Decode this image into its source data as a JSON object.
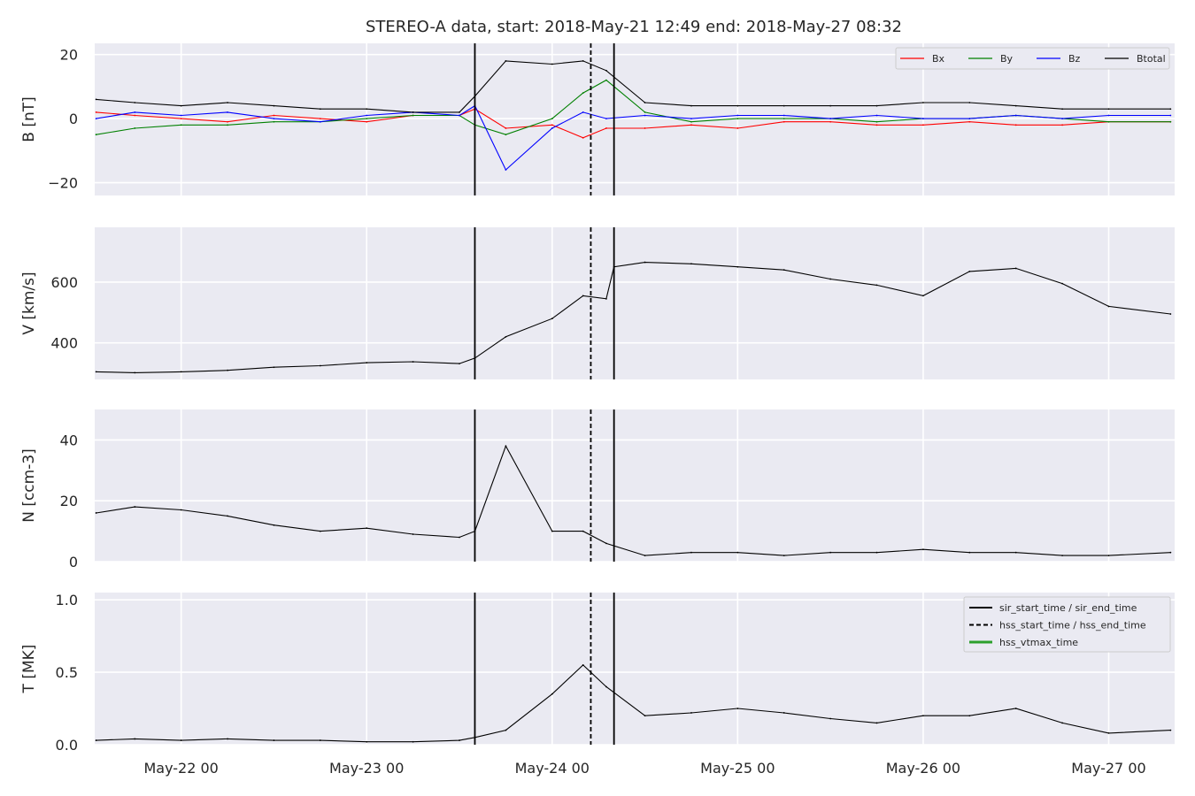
{
  "figure": {
    "title": "STEREO-A data, start: 2018-May-21 12:49  end: 2018-May-27 08:32"
  },
  "chart_data": [
    {
      "type": "line",
      "panel": "B",
      "ylabel": "B [nT]",
      "ylim": [
        -24,
        23.5
      ],
      "yticks": [
        -20,
        0,
        20
      ],
      "ytick_labels": [
        "−20",
        "0",
        "20"
      ],
      "grid": true,
      "legend": {
        "placement": "top-right",
        "style": "horizontal"
      },
      "series": [
        {
          "name": "Bx",
          "color": "#ff0000",
          "x": [
            "2018-05-21 13:00",
            "2018-05-21 18:00",
            "2018-05-22 00:00",
            "2018-05-22 06:00",
            "2018-05-22 12:00",
            "2018-05-22 18:00",
            "2018-05-23 00:00",
            "2018-05-23 06:00",
            "2018-05-23 12:00",
            "2018-05-23 14:00",
            "2018-05-23 18:00",
            "2018-05-24 00:00",
            "2018-05-24 04:00",
            "2018-05-24 07:00",
            "2018-05-24 12:00",
            "2018-05-24 18:00",
            "2018-05-25 00:00",
            "2018-05-25 06:00",
            "2018-05-25 12:00",
            "2018-05-25 18:00",
            "2018-05-26 00:00",
            "2018-05-26 06:00",
            "2018-05-26 12:00",
            "2018-05-26 18:00",
            "2018-05-27 00:00",
            "2018-05-27 08:00"
          ],
          "y": [
            2,
            1,
            0,
            -1,
            1,
            0,
            -1,
            1,
            1,
            3,
            -3,
            -2,
            -6,
            -3,
            -3,
            -2,
            -3,
            -1,
            -1,
            -2,
            -2,
            -1,
            -2,
            -2,
            -1,
            -1
          ]
        },
        {
          "name": "By",
          "color": "#008000",
          "x": [
            "2018-05-21 13:00",
            "2018-05-21 18:00",
            "2018-05-22 00:00",
            "2018-05-22 06:00",
            "2018-05-22 12:00",
            "2018-05-22 18:00",
            "2018-05-23 00:00",
            "2018-05-23 06:00",
            "2018-05-23 12:00",
            "2018-05-23 14:00",
            "2018-05-23 18:00",
            "2018-05-24 00:00",
            "2018-05-24 04:00",
            "2018-05-24 07:00",
            "2018-05-24 12:00",
            "2018-05-24 18:00",
            "2018-05-25 00:00",
            "2018-05-25 06:00",
            "2018-05-25 12:00",
            "2018-05-25 18:00",
            "2018-05-26 00:00",
            "2018-05-26 06:00",
            "2018-05-26 12:00",
            "2018-05-26 18:00",
            "2018-05-27 00:00",
            "2018-05-27 08:00"
          ],
          "y": [
            -5,
            -3,
            -2,
            -2,
            -1,
            -1,
            0,
            1,
            1,
            -2,
            -5,
            0,
            8,
            12,
            2,
            -1,
            0,
            0,
            0,
            -1,
            0,
            0,
            1,
            0,
            -1,
            -1
          ]
        },
        {
          "name": "Bz",
          "color": "#0000ff",
          "x": [
            "2018-05-21 13:00",
            "2018-05-21 18:00",
            "2018-05-22 00:00",
            "2018-05-22 06:00",
            "2018-05-22 12:00",
            "2018-05-22 18:00",
            "2018-05-23 00:00",
            "2018-05-23 06:00",
            "2018-05-23 12:00",
            "2018-05-23 14:00",
            "2018-05-23 18:00",
            "2018-05-24 00:00",
            "2018-05-24 04:00",
            "2018-05-24 07:00",
            "2018-05-24 12:00",
            "2018-05-24 18:00",
            "2018-05-25 00:00",
            "2018-05-25 06:00",
            "2018-05-25 12:00",
            "2018-05-25 18:00",
            "2018-05-26 00:00",
            "2018-05-26 06:00",
            "2018-05-26 12:00",
            "2018-05-26 18:00",
            "2018-05-27 00:00",
            "2018-05-27 08:00"
          ],
          "y": [
            0,
            2,
            1,
            2,
            0,
            -1,
            1,
            2,
            1,
            4,
            -16,
            -3,
            2,
            0,
            1,
            0,
            1,
            1,
            0,
            1,
            0,
            0,
            1,
            0,
            1,
            1
          ]
        },
        {
          "name": "Btotal",
          "color": "#000000",
          "x": [
            "2018-05-21 13:00",
            "2018-05-21 18:00",
            "2018-05-22 00:00",
            "2018-05-22 06:00",
            "2018-05-22 12:00",
            "2018-05-22 18:00",
            "2018-05-23 00:00",
            "2018-05-23 06:00",
            "2018-05-23 12:00",
            "2018-05-23 14:00",
            "2018-05-23 18:00",
            "2018-05-24 00:00",
            "2018-05-24 04:00",
            "2018-05-24 07:00",
            "2018-05-24 12:00",
            "2018-05-24 18:00",
            "2018-05-25 00:00",
            "2018-05-25 06:00",
            "2018-05-25 12:00",
            "2018-05-25 18:00",
            "2018-05-26 00:00",
            "2018-05-26 06:00",
            "2018-05-26 12:00",
            "2018-05-26 18:00",
            "2018-05-27 00:00",
            "2018-05-27 08:00"
          ],
          "y": [
            6,
            5,
            4,
            5,
            4,
            3,
            3,
            2,
            2,
            7,
            18,
            17,
            18,
            15,
            5,
            4,
            4,
            4,
            4,
            4,
            5,
            5,
            4,
            3,
            3,
            3
          ]
        }
      ]
    },
    {
      "type": "line",
      "panel": "V",
      "ylabel": "V [km/s]",
      "ylim": [
        280,
        780
      ],
      "yticks": [
        400,
        600
      ],
      "ytick_labels": [
        "400",
        "600"
      ],
      "grid": true,
      "series": [
        {
          "color": "#000000",
          "x": [
            "2018-05-21 13:00",
            "2018-05-21 18:00",
            "2018-05-22 00:00",
            "2018-05-22 06:00",
            "2018-05-22 12:00",
            "2018-05-22 18:00",
            "2018-05-23 00:00",
            "2018-05-23 06:00",
            "2018-05-23 12:00",
            "2018-05-23 14:00",
            "2018-05-23 18:00",
            "2018-05-24 00:00",
            "2018-05-24 04:00",
            "2018-05-24 07:00",
            "2018-05-24 08:00",
            "2018-05-24 12:00",
            "2018-05-24 18:00",
            "2018-05-25 00:00",
            "2018-05-25 06:00",
            "2018-05-25 12:00",
            "2018-05-25 18:00",
            "2018-05-26 00:00",
            "2018-05-26 06:00",
            "2018-05-26 12:00",
            "2018-05-26 18:00",
            "2018-05-27 00:00",
            "2018-05-27 08:00"
          ],
          "y": [
            305,
            302,
            305,
            310,
            320,
            325,
            335,
            338,
            332,
            350,
            420,
            480,
            555,
            545,
            650,
            665,
            660,
            650,
            640,
            610,
            590,
            555,
            635,
            645,
            595,
            520,
            495
          ]
        }
      ]
    },
    {
      "type": "line",
      "panel": "N",
      "ylabel": "N [ccm-3]",
      "ylim": [
        0,
        50
      ],
      "yticks": [
        0,
        20,
        40
      ],
      "ytick_labels": [
        "0",
        "20",
        "40"
      ],
      "grid": true,
      "series": [
        {
          "color": "#000000",
          "x": [
            "2018-05-21 13:00",
            "2018-05-21 18:00",
            "2018-05-22 00:00",
            "2018-05-22 06:00",
            "2018-05-22 12:00",
            "2018-05-22 18:00",
            "2018-05-23 00:00",
            "2018-05-23 06:00",
            "2018-05-23 12:00",
            "2018-05-23 14:00",
            "2018-05-23 18:00",
            "2018-05-24 00:00",
            "2018-05-24 04:00",
            "2018-05-24 07:00",
            "2018-05-24 12:00",
            "2018-05-24 18:00",
            "2018-05-25 00:00",
            "2018-05-25 06:00",
            "2018-05-25 12:00",
            "2018-05-25 18:00",
            "2018-05-26 00:00",
            "2018-05-26 06:00",
            "2018-05-26 12:00",
            "2018-05-26 18:00",
            "2018-05-27 00:00",
            "2018-05-27 08:00"
          ],
          "y": [
            16,
            18,
            17,
            15,
            12,
            10,
            11,
            9,
            8,
            10,
            38,
            10,
            10,
            6,
            2,
            3,
            3,
            2,
            3,
            3,
            4,
            3,
            3,
            2,
            2,
            3
          ]
        }
      ]
    },
    {
      "type": "line",
      "panel": "T",
      "ylabel": "T [MK]",
      "ylim": [
        0,
        1.05
      ],
      "yticks": [
        0.0,
        0.5,
        1.0
      ],
      "ytick_labels": [
        "0.0",
        "0.5",
        "1.0"
      ],
      "grid": true,
      "legend": {
        "placement": "top-right",
        "style": "vertical"
      },
      "series": [
        {
          "color": "#000000",
          "x": [
            "2018-05-21 13:00",
            "2018-05-21 18:00",
            "2018-05-22 00:00",
            "2018-05-22 06:00",
            "2018-05-22 12:00",
            "2018-05-22 18:00",
            "2018-05-23 00:00",
            "2018-05-23 06:00",
            "2018-05-23 12:00",
            "2018-05-23 14:00",
            "2018-05-23 18:00",
            "2018-05-24 00:00",
            "2018-05-24 04:00",
            "2018-05-24 07:00",
            "2018-05-24 12:00",
            "2018-05-24 18:00",
            "2018-05-25 00:00",
            "2018-05-25 06:00",
            "2018-05-25 12:00",
            "2018-05-25 18:00",
            "2018-05-26 00:00",
            "2018-05-26 06:00",
            "2018-05-26 12:00",
            "2018-05-26 18:00",
            "2018-05-27 00:00",
            "2018-05-27 08:00"
          ],
          "y": [
            0.03,
            0.04,
            0.03,
            0.04,
            0.03,
            0.03,
            0.02,
            0.02,
            0.03,
            0.05,
            0.1,
            0.35,
            0.55,
            0.4,
            0.2,
            0.22,
            0.25,
            0.22,
            0.18,
            0.15,
            0.2,
            0.2,
            0.25,
            0.15,
            0.08,
            0.1
          ]
        }
      ]
    }
  ],
  "x_axis": {
    "range": [
      "2018-05-21 12:49",
      "2018-05-27 08:32"
    ],
    "ticks": [
      "2018-05-22 00:00",
      "2018-05-23 00:00",
      "2018-05-24 00:00",
      "2018-05-25 00:00",
      "2018-05-26 00:00",
      "2018-05-27 00:00"
    ],
    "tick_labels": [
      "May-22 00",
      "May-23 00",
      "May-24 00",
      "May-25 00",
      "May-26 00",
      "May-27 00"
    ]
  },
  "event_lines": [
    {
      "x": "2018-05-23 14:00",
      "style": "solid"
    },
    {
      "x": "2018-05-24 05:00",
      "style": "dashed"
    },
    {
      "x": "2018-05-24 08:00",
      "style": "solid"
    }
  ],
  "events_legend": [
    {
      "label": "sir_start_time / sir_end_time",
      "style": "solid",
      "color": "#000000"
    },
    {
      "label": "hss_start_time / hss_end_time",
      "style": "dashed",
      "color": "#000000"
    },
    {
      "label": "hss_vtmax_time",
      "style": "solid",
      "color": "#2ca02c"
    }
  ],
  "colors": {
    "axes_bg": "#eaeaf2",
    "grid": "#ffffff"
  }
}
